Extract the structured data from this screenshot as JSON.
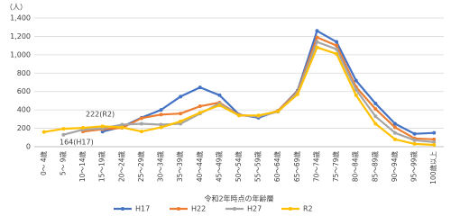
{
  "chart_data": {
    "type": "line",
    "unit_label": "（人）",
    "x_label": "令和2年時点の年齢層",
    "categories": [
      "0～ 4歳",
      "5～ 9歳",
      "10～14歳",
      "15～19歳",
      "20～24歳",
      "25～29歳",
      "30～34歳",
      "35～39歳",
      "40～44歳",
      "45～49歳",
      "50～54歳",
      "55～59歳",
      "60～64歳",
      "65～69歳",
      "70～74歳",
      "75～79歳",
      "80～84歳",
      "85～89歳",
      "90～94歳",
      "95～99歳",
      "100歳以上"
    ],
    "series": [
      {
        "name": "H17",
        "color": "#4472c4",
        "values": [
          null,
          null,
          null,
          164,
          215,
          315,
          400,
          545,
          645,
          560,
          350,
          315,
          390,
          610,
          1260,
          1140,
          720,
          470,
          250,
          140,
          150
        ]
      },
      {
        "name": "H22",
        "color": "#ed7d31",
        "values": [
          null,
          null,
          165,
          190,
          205,
          310,
          350,
          360,
          440,
          480,
          345,
          330,
          390,
          600,
          1190,
          1100,
          650,
          410,
          210,
          90,
          80
        ]
      },
      {
        "name": "H27",
        "color": "#a5a5a5",
        "values": [
          null,
          130,
          185,
          200,
          240,
          250,
          240,
          250,
          360,
          470,
          340,
          330,
          380,
          590,
          1140,
          1060,
          620,
          330,
          150,
          70,
          50
        ]
      },
      {
        "name": "R2",
        "color": "#ffc000",
        "values": [
          160,
          195,
          205,
          222,
          210,
          165,
          210,
          275,
          370,
          450,
          340,
          340,
          385,
          570,
          1080,
          1010,
          560,
          250,
          80,
          30,
          20
        ]
      }
    ],
    "annotations": [
      "222(R2)",
      "164(H17)"
    ],
    "ylim": [
      0,
      1400
    ],
    "yticks": [
      0,
      200,
      400,
      600,
      800,
      {
        "value": 1000,
        "label": "1,000"
      },
      {
        "value": 1200,
        "label": "1,200"
      },
      {
        "value": 1400,
        "label": "1,400"
      }
    ],
    "grid": true
  }
}
